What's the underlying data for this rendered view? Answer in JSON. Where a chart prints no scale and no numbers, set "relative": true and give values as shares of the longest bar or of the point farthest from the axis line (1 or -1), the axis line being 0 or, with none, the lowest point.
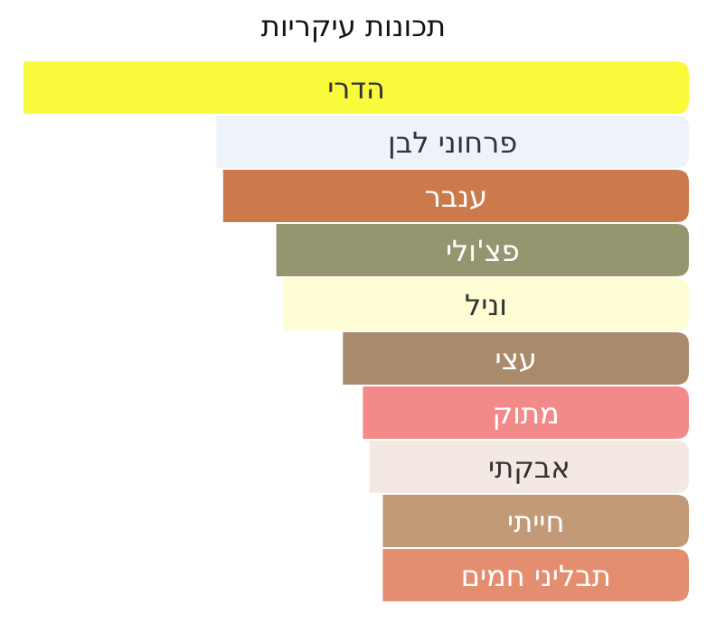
{
  "chart_data": {
    "type": "bar",
    "orientation": "horizontal",
    "relative": true,
    "title": "תכונות עיקריות",
    "categories": [
      "הדרי",
      "פרחוני לבן",
      "ענבר",
      "פצ'ולי",
      "וניל",
      "עצי",
      "מתוק",
      "אבקתי",
      "חייתי",
      "תבליני חמים"
    ],
    "values": [
      1,
      0.71,
      0.7,
      0.62,
      0.61,
      0.52,
      0.49,
      0.48,
      0.46,
      0.46
    ],
    "colors": [
      "#f9fa3b",
      "#eef3fb",
      "#cc7a4c",
      "#959570",
      "#fefdd4",
      "#a98b6c",
      "#f38a8a",
      "#f3e9e2",
      "#c39a78",
      "#e48d6f"
    ]
  }
}
